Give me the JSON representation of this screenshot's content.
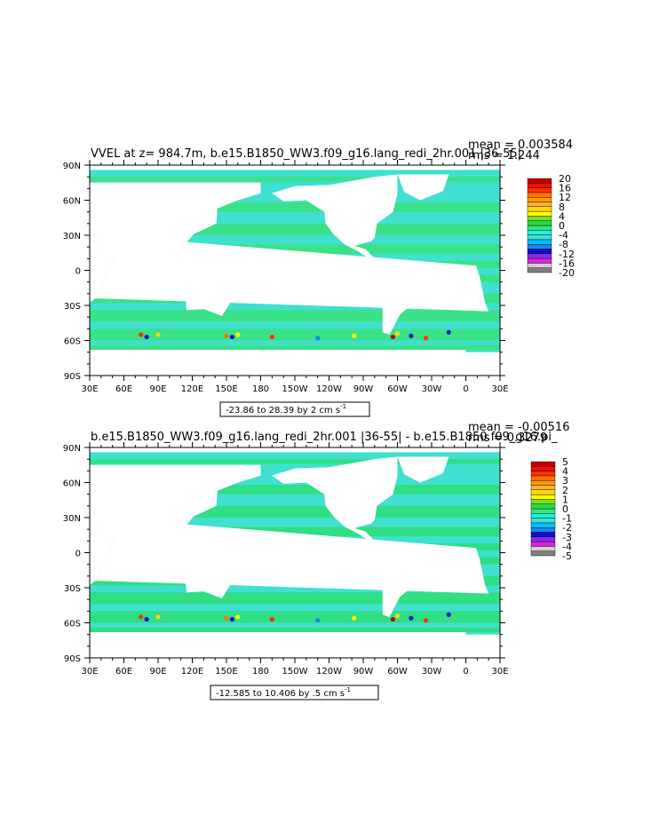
{
  "chart_data": [
    {
      "type": "heatmap",
      "title": "VVEL at z= 984.7m, b.e15.B1850_WW3.f09_g16.lang_redi_2hr.001 |36-55|",
      "stats": {
        "mean_label": "mean = 0.003584",
        "rms_label": "rms = 1.244"
      },
      "range_label": "-23.86 to 28.39 by 2 cm s",
      "units_exponent": "-1",
      "x_ticks": [
        "30E",
        "60E",
        "90E",
        "120E",
        "150E",
        "180",
        "150W",
        "120W",
        "90W",
        "60W",
        "30W",
        "0",
        "30E"
      ],
      "y_ticks": [
        "90N",
        "60N",
        "30N",
        "0",
        "30S",
        "60S",
        "90S"
      ],
      "colorbar": {
        "labels": [
          "20",
          "16",
          "12",
          "8",
          "4",
          "0",
          "-4",
          "-8",
          "-12",
          "-16",
          "-20"
        ],
        "colors": [
          "#7f7f7f",
          "#cfcfcf",
          "#e020e0",
          "#8a2be2",
          "#1010d0",
          "#1c86ee",
          "#00bfff",
          "#40e0d0",
          "#20f0e0",
          "#3be07a",
          "#22dd44",
          "#80e020",
          "#ffff00",
          "#ffd700",
          "#ffb030",
          "#ff9a00",
          "#ff7000",
          "#ff3000",
          "#ee1000",
          "#c00000"
        ]
      }
    },
    {
      "type": "heatmap",
      "title": "b.e15.B1850_WW3.f09_g16.lang_redi_2hr.001 |36-55| - b.e15.B1850.f09_g16.pi_",
      "stats": {
        "mean_label": "mean = -0.00516",
        "rms_label": "rms = 0.3279"
      },
      "range_label": "-12.585 to 10.406 by .5 cm s",
      "units_exponent": "-1",
      "x_ticks": [
        "30E",
        "60E",
        "90E",
        "120E",
        "150E",
        "180",
        "150W",
        "120W",
        "90W",
        "60W",
        "30W",
        "0",
        "30E"
      ],
      "y_ticks": [
        "90N",
        "60N",
        "30N",
        "0",
        "30S",
        "60S",
        "90S"
      ],
      "colorbar": {
        "labels": [
          "5",
          "4",
          "3",
          "2",
          "1",
          "0",
          "-1",
          "-2",
          "-3",
          "-4",
          "-5"
        ],
        "colors": [
          "#7f7f7f",
          "#cfcfcf",
          "#e020e0",
          "#8a2be2",
          "#1010d0",
          "#1c86ee",
          "#00bfff",
          "#40e0d0",
          "#20f0e0",
          "#3be07a",
          "#22dd44",
          "#80e020",
          "#ffff00",
          "#ffd700",
          "#ffb030",
          "#ff9a00",
          "#ff7000",
          "#ff3000",
          "#ee1000",
          "#c00000"
        ]
      }
    }
  ]
}
